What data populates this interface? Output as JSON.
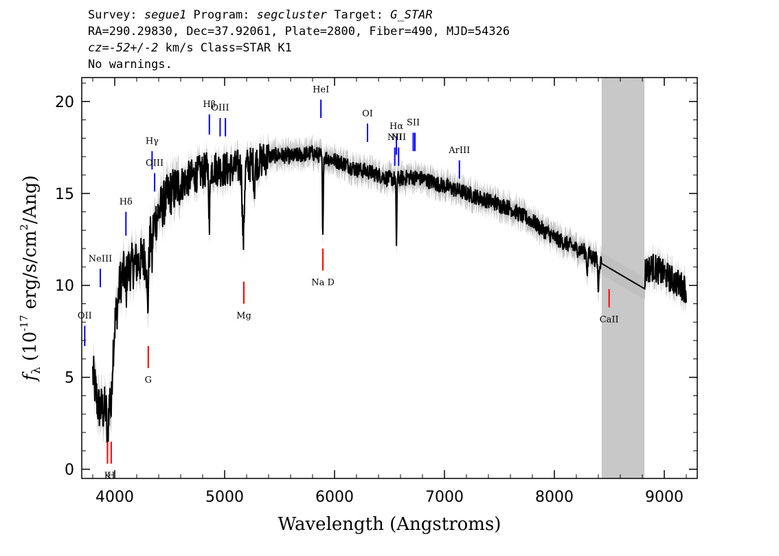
{
  "header": {
    "line1": {
      "survey_label": "Survey: ",
      "survey": "segue1",
      "program_label": " Program: ",
      "program": "segcluster",
      "target_label": " Target: ",
      "target": "G_STAR"
    },
    "line2": "RA=290.29830, Dec=37.92061, Plate=2800, Fiber=490, MJD=54326",
    "line3": {
      "cz_label": "cz=",
      "cz_value": "-52+/-2",
      "rest": " km/s Class=STAR K1"
    },
    "line4": "No warnings."
  },
  "chart_data": {
    "type": "line",
    "xlabel": "Wavelength (Angstroms)",
    "ylabel_main": "f",
    "ylabel_sub": "λ",
    "ylabel_rest": " (10",
    "ylabel_exp1": "-17",
    "ylabel_rest2": " erg/s/cm",
    "ylabel_exp2": "2",
    "ylabel_rest3": "/Ang)",
    "xlim": [
      3700,
      9300
    ],
    "ylim": [
      -0.5,
      21.3
    ],
    "x_ticks": [
      {
        "value": 4000,
        "label": "4000"
      },
      {
        "value": 5000,
        "label": "5000"
      },
      {
        "value": 6000,
        "label": "6000"
      },
      {
        "value": 7000,
        "label": "7000"
      },
      {
        "value": 8000,
        "label": "8000"
      },
      {
        "value": 9000,
        "label": "9000"
      }
    ],
    "y_ticks": [
      {
        "value": 0,
        "label": "0"
      },
      {
        "value": 5,
        "label": "5"
      },
      {
        "value": 10,
        "label": "10"
      },
      {
        "value": 15,
        "label": "15"
      },
      {
        "value": 20,
        "label": "20"
      }
    ],
    "masked_region": [
      8430,
      8820
    ],
    "spectrum_color": "#000000",
    "error_color": "#c0c0c0",
    "mask_color": "#c8c8c8",
    "continuum": [
      [
        3800,
        5.2
      ],
      [
        3850,
        3.4
      ],
      [
        3900,
        3.2
      ],
      [
        3950,
        3.6
      ],
      [
        4000,
        7.8
      ],
      [
        4050,
        10.2
      ],
      [
        4100,
        10.8
      ],
      [
        4150,
        11.0
      ],
      [
        4200,
        11.2
      ],
      [
        4250,
        11.4
      ],
      [
        4300,
        11.8
      ],
      [
        4350,
        13.2
      ],
      [
        4400,
        14.0
      ],
      [
        4500,
        15.0
      ],
      [
        4600,
        15.5
      ],
      [
        4700,
        15.9
      ],
      [
        4800,
        16.2
      ],
      [
        4900,
        16.4
      ],
      [
        5000,
        16.3
      ],
      [
        5100,
        16.4
      ],
      [
        5200,
        16.5
      ],
      [
        5300,
        16.7
      ],
      [
        5400,
        17.0
      ],
      [
        5500,
        17.1
      ],
      [
        5600,
        17.0
      ],
      [
        5700,
        17.1
      ],
      [
        5800,
        17.2
      ],
      [
        5900,
        17.0
      ],
      [
        6000,
        16.8
      ],
      [
        6100,
        16.6
      ],
      [
        6200,
        16.3
      ],
      [
        6300,
        16.2
      ],
      [
        6400,
        16.0
      ],
      [
        6500,
        15.8
      ],
      [
        6600,
        15.8
      ],
      [
        6700,
        15.9
      ],
      [
        6800,
        15.8
      ],
      [
        6900,
        15.6
      ],
      [
        7000,
        15.4
      ],
      [
        7100,
        15.2
      ],
      [
        7200,
        15.0
      ],
      [
        7300,
        14.8
      ],
      [
        7400,
        14.6
      ],
      [
        7500,
        14.4
      ],
      [
        7600,
        14.2
      ],
      [
        7700,
        13.8
      ],
      [
        7800,
        13.5
      ],
      [
        7900,
        13.0
      ],
      [
        8000,
        12.6
      ],
      [
        8100,
        12.3
      ],
      [
        8200,
        12.0
      ],
      [
        8300,
        11.8
      ],
      [
        8400,
        11.3
      ],
      [
        8820,
        10.8
      ],
      [
        8900,
        11.0
      ],
      [
        9000,
        10.6
      ],
      [
        9100,
        10.2
      ],
      [
        9200,
        9.8
      ]
    ],
    "absorption": [
      {
        "x": 3934,
        "depth": 2.2,
        "width": 8
      },
      {
        "x": 3968,
        "depth": 2.0,
        "width": 8
      },
      {
        "x": 4102,
        "depth": 1.5,
        "width": 6
      },
      {
        "x": 4300,
        "depth": 3.0,
        "width": 10
      },
      {
        "x": 4340,
        "depth": 1.6,
        "width": 6
      },
      {
        "x": 4861,
        "depth": 3.5,
        "width": 6
      },
      {
        "x": 5170,
        "depth": 4.0,
        "width": 12
      },
      {
        "x": 5270,
        "depth": 1.5,
        "width": 6
      },
      {
        "x": 5893,
        "depth": 4.8,
        "width": 5
      },
      {
        "x": 6563,
        "depth": 3.5,
        "width": 5
      },
      {
        "x": 8300,
        "depth": 1.0,
        "width": 8
      },
      {
        "x": 8400,
        "depth": 1.6,
        "width": 6
      },
      {
        "x": 8820,
        "depth": 1.0,
        "width": 4
      }
    ],
    "emission_lines": [
      {
        "label": "OII",
        "x": 3727,
        "y1": 6.7,
        "y2": 7.8,
        "label_y": 8.2
      },
      {
        "label": "NeIII",
        "x": 3869,
        "y1": 9.9,
        "y2": 10.9,
        "label_y": 11.3
      },
      {
        "label": "Hδ",
        "x": 4102,
        "y1": 12.7,
        "y2": 14.0,
        "label_y": 14.4
      },
      {
        "label": "Hγ",
        "x": 4340,
        "y1": 16.3,
        "y2": 17.3,
        "label_y": 17.7
      },
      {
        "label": "OIII",
        "x": 4363,
        "y1": 15.1,
        "y2": 16.1,
        "label_y": 16.5
      },
      {
        "label": "Hβ",
        "x": 4861,
        "y1": 18.2,
        "y2": 19.3,
        "label_y": 19.7
      },
      {
        "label": "OIII",
        "x": 4959,
        "y1": 18.1,
        "y2": 19.1,
        "label_y": 19.5
      },
      {
        "label": "",
        "x": 5007,
        "y1": 18.1,
        "y2": 19.1,
        "label_y": 19.5
      },
      {
        "label": "HeI",
        "x": 5876,
        "y1": 19.1,
        "y2": 20.1,
        "label_y": 20.5
      },
      {
        "label": "OI",
        "x": 6300,
        "y1": 17.8,
        "y2": 18.8,
        "label_y": 19.2
      },
      {
        "label": "NII",
        "x": 6548,
        "y1": 16.5,
        "y2": 17.5,
        "label_y": 17.9
      },
      {
        "label": "Hα",
        "x": 6563,
        "y1": 17.1,
        "y2": 18.1,
        "label_y": 18.5
      },
      {
        "label": "NII",
        "x": 6583,
        "y1": 16.5,
        "y2": 17.5,
        "label_y": 17.9
      },
      {
        "label": "SII",
        "x": 6716,
        "y1": 17.3,
        "y2": 18.3,
        "label_y": 18.7
      },
      {
        "label": "",
        "x": 6731,
        "y1": 17.3,
        "y2": 18.3,
        "label_y": 18.7
      },
      {
        "label": "ArIII",
        "x": 7136,
        "y1": 15.8,
        "y2": 16.8,
        "label_y": 17.2
      }
    ],
    "absorption_lines": [
      {
        "label": "K",
        "x": 3934,
        "y1": 0.3,
        "y2": 1.5,
        "label_y": -0.5
      },
      {
        "label": "H",
        "x": 3968,
        "y1": 0.3,
        "y2": 1.5,
        "label_y": -0.5
      },
      {
        "label": "G",
        "x": 4305,
        "y1": 5.5,
        "y2": 6.7,
        "label_y": 4.7
      },
      {
        "label": "Mg",
        "x": 5175,
        "y1": 9.0,
        "y2": 10.2,
        "label_y": 8.2
      },
      {
        "label": "Na D",
        "x": 5894,
        "y1": 10.8,
        "y2": 12.0,
        "label_y": 10.0
      },
      {
        "label": "CaII",
        "x": 8498,
        "y1": 8.8,
        "y2": 9.8,
        "label_y": 8.0
      }
    ]
  }
}
